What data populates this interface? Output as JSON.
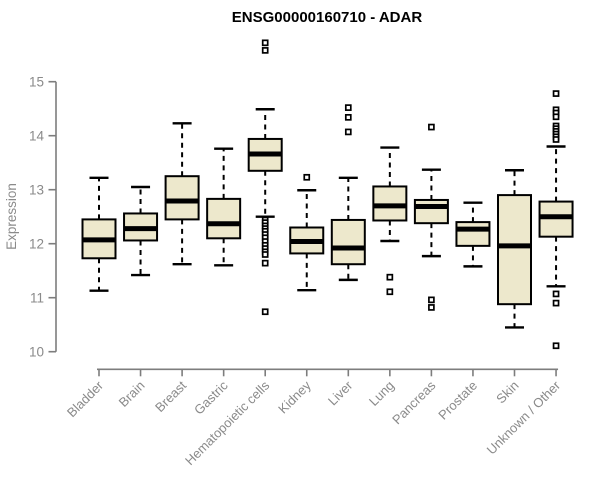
{
  "title": "ENSG00000160710 - ADAR",
  "colors": {
    "background": "#ffffff",
    "box_fill": "#EDE8CC",
    "box_stroke": "#000000",
    "median": "#000000",
    "whisker": "#000000",
    "outlier_stroke": "#000000",
    "outlier_fill": "#ffffff",
    "axis_line": "#7d7d7d",
    "tick_label": "#8a8a8a",
    "title_color": "#000000"
  },
  "chart_data": {
    "type": "boxplot",
    "title": "ENSG00000160710 - ADAR",
    "xlabel": "",
    "ylabel": "Expression",
    "ylim": [
      10,
      15
    ],
    "yticks": [
      10,
      11,
      12,
      13,
      14,
      15
    ],
    "grid": false,
    "legend": "none",
    "categories": [
      "Bladder",
      "Brain",
      "Breast",
      "Gastric",
      "Hematopoietic cells",
      "Kidney",
      "Liver",
      "Lung",
      "Pancreas",
      "Prostate",
      "Skin",
      "Unknown / Other"
    ],
    "series": [
      {
        "label": "Bladder",
        "whisker_low": 11.13,
        "q1": 11.73,
        "median": 12.07,
        "q3": 12.45,
        "whisker_high": 13.22,
        "outliers": []
      },
      {
        "label": "Brain",
        "whisker_low": 11.42,
        "q1": 12.06,
        "median": 12.28,
        "q3": 12.56,
        "whisker_high": 13.05,
        "outliers": []
      },
      {
        "label": "Breast",
        "whisker_low": 11.62,
        "q1": 12.45,
        "median": 12.79,
        "q3": 13.25,
        "whisker_high": 14.23,
        "outliers": []
      },
      {
        "label": "Gastric",
        "whisker_low": 11.6,
        "q1": 12.1,
        "median": 12.37,
        "q3": 12.83,
        "whisker_high": 13.76,
        "outliers": []
      },
      {
        "label": "Hematopoietic cells",
        "whisker_low": 12.5,
        "q1": 13.35,
        "median": 13.66,
        "q3": 13.94,
        "whisker_high": 14.49,
        "outliers": [
          15.72,
          15.58,
          12.44,
          12.39,
          12.33,
          12.28,
          12.23,
          12.17,
          12.11,
          12.04,
          11.97,
          11.91,
          11.85,
          11.8,
          11.64,
          10.74
        ]
      },
      {
        "label": "Kidney",
        "whisker_low": 11.14,
        "q1": 11.82,
        "median": 12.04,
        "q3": 12.3,
        "whisker_high": 12.99,
        "outliers": [
          13.23
        ]
      },
      {
        "label": "Liver",
        "whisker_low": 11.33,
        "q1": 11.62,
        "median": 11.92,
        "q3": 12.44,
        "whisker_high": 13.22,
        "outliers": [
          14.52,
          14.34,
          14.07
        ]
      },
      {
        "label": "Lung",
        "whisker_low": 12.05,
        "q1": 12.43,
        "median": 12.7,
        "q3": 13.06,
        "whisker_high": 13.78,
        "outliers": [
          11.38,
          11.11
        ]
      },
      {
        "label": "Pancreas",
        "whisker_low": 11.77,
        "q1": 12.38,
        "median": 12.69,
        "q3": 12.81,
        "whisker_high": 13.37,
        "outliers": [
          14.16,
          10.96,
          10.82
        ]
      },
      {
        "label": "Prostate",
        "whisker_low": 11.58,
        "q1": 11.96,
        "median": 12.27,
        "q3": 12.4,
        "whisker_high": 12.76,
        "outliers": []
      },
      {
        "label": "Skin",
        "whisker_low": 10.45,
        "q1": 10.88,
        "median": 11.96,
        "q3": 12.9,
        "whisker_high": 13.36,
        "outliers": []
      },
      {
        "label": "Unknown / Other",
        "whisker_low": 11.21,
        "q1": 12.13,
        "median": 12.5,
        "q3": 12.78,
        "whisker_high": 13.8,
        "outliers": [
          14.78,
          14.48,
          14.42,
          14.35,
          14.18,
          14.13,
          14.08,
          14.03,
          13.98,
          13.93,
          11.07,
          10.9,
          10.11
        ]
      }
    ]
  }
}
